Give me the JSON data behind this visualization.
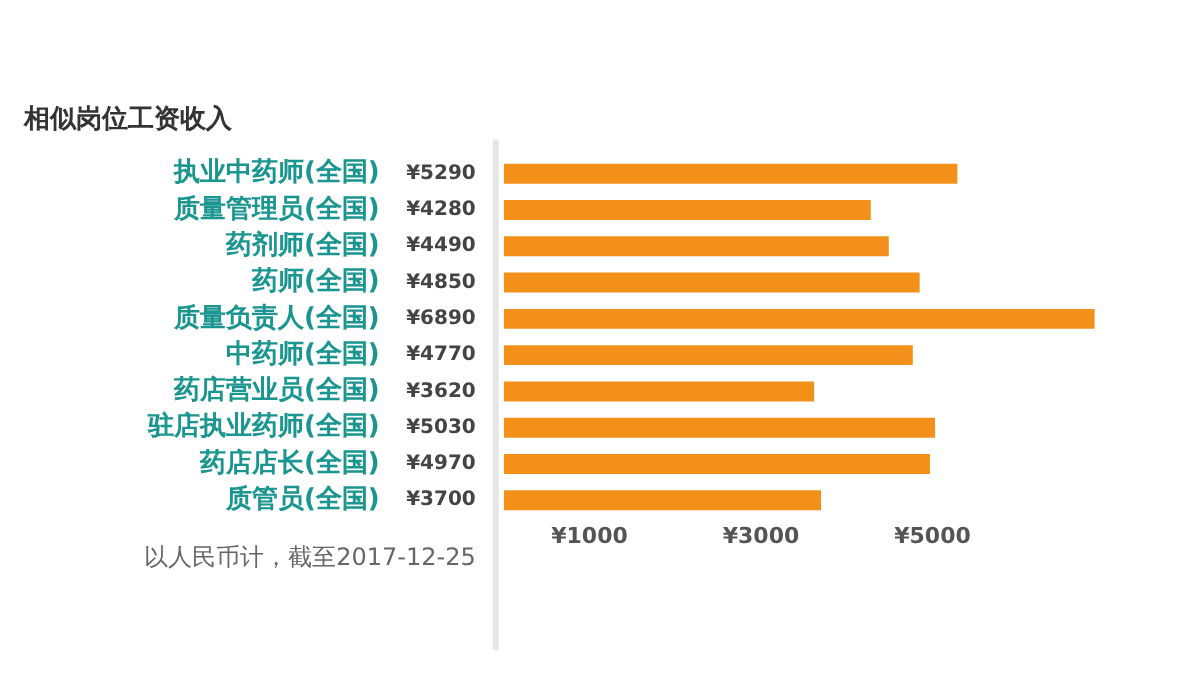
{
  "chart_data": {
    "type": "bar",
    "orientation": "horizontal",
    "title": "相似岗位工资收入",
    "categories": [
      "执业中药师(全国)",
      "质量管理员(全国)",
      "药剂师(全国)",
      "药师(全国)",
      "质量负责人(全国)",
      "中药师(全国)",
      "药店营业员(全国)",
      "驻店执业药师(全国)",
      "药店店长(全国)",
      "质管员(全国)"
    ],
    "values": [
      5290,
      4280,
      4490,
      4850,
      6890,
      4770,
      3620,
      5030,
      4970,
      3700
    ],
    "value_labels": [
      "¥5290",
      "¥4280",
      "¥4490",
      "¥4850",
      "¥6890",
      "¥4770",
      "¥3620",
      "¥5030",
      "¥4970",
      "¥3700"
    ],
    "color": "#f39019",
    "xlim": [
      0,
      7000
    ],
    "xticks": [
      {
        "value": 1000,
        "label": "¥1000"
      },
      {
        "value": 3000,
        "label": "¥3000"
      },
      {
        "value": 5000,
        "label": "¥5000"
      }
    ],
    "annotations": [
      "以人民币计，截至2017-12-25"
    ],
    "grid": false,
    "legend": false
  }
}
